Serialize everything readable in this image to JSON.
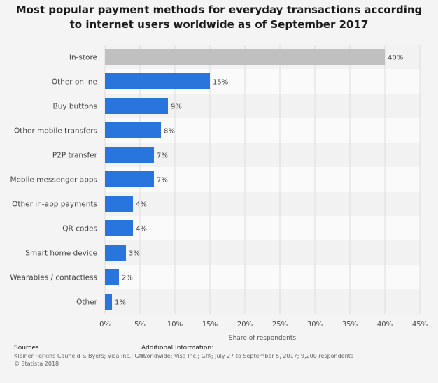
{
  "title": "Most popular payment methods for everyday transactions according to internet users worldwide as of September 2017",
  "chart_data": {
    "type": "bar",
    "orientation": "horizontal",
    "categories": [
      "In-store",
      "Other online",
      "Buy buttons",
      "Other mobile transfers",
      "P2P transfer",
      "Mobile messenger apps",
      "Other in-app payments",
      "QR codes",
      "Smart home device",
      "Wearables / contactless",
      "Other"
    ],
    "values": [
      40,
      15,
      9,
      8,
      7,
      7,
      4,
      4,
      3,
      2,
      1
    ],
    "value_labels": [
      "40%",
      "15%",
      "9%",
      "8%",
      "7%",
      "7%",
      "4%",
      "4%",
      "3%",
      "2%",
      "1%"
    ],
    "highlight_index": 0,
    "xlabel": "Share of respondents",
    "ylabel": "",
    "xlim": [
      0,
      45
    ],
    "xticks": [
      0,
      5,
      10,
      15,
      20,
      25,
      30,
      35,
      40,
      45
    ],
    "xtick_labels": [
      "0%",
      "5%",
      "10%",
      "15%",
      "20%",
      "25%",
      "30%",
      "35%",
      "40%",
      "45%"
    ],
    "grid": true,
    "colors": {
      "bar": "#2876dd",
      "highlight": "#c0c0c0",
      "band_light": "#fafafa",
      "band_dark": "#f2f2f2",
      "grid": "#dedede"
    }
  },
  "footer": {
    "sources_heading": "Sources",
    "sources_text": "Kleiner Perkins Caufield & Byers; Visa Inc.; GfK",
    "copyright": "© Statista 2018",
    "info_heading": "Additional Information:",
    "info_text": "Worldwide; Visa Inc.; GfK; July 27 to September 5, 2017; 9,200 respondents"
  }
}
